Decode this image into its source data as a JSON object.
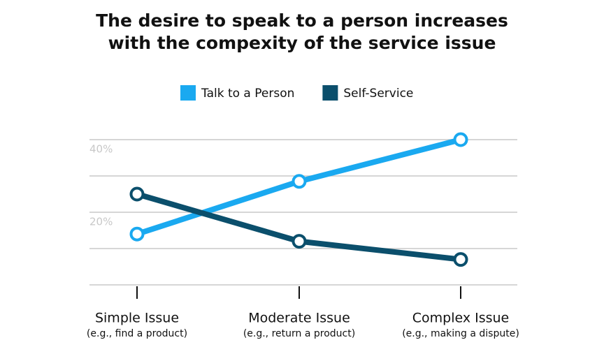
{
  "chart_data": {
    "type": "line",
    "title": [
      "The desire to speak to a person increases",
      "with the compexity of the service issue"
    ],
    "categories": [
      "Simple Issue",
      "Moderate Issue",
      "Complex Issue"
    ],
    "category_notes": [
      "(e.g., find a product)",
      "(e.g., return a product)",
      "(e.g., making a dispute)"
    ],
    "series": [
      {
        "name": "Talk to a Person",
        "color": "#1aa9f0",
        "values": [
          14,
          28.5,
          40
        ]
      },
      {
        "name": "Self-Service",
        "color": "#0b4f6c",
        "values": [
          25,
          12,
          7
        ]
      }
    ],
    "ylim": [
      0,
      40
    ],
    "yticks": [
      {
        "value": 20,
        "label": "20%"
      },
      {
        "value": 40,
        "label": "40%"
      }
    ],
    "grid_lines": [
      0,
      10,
      20,
      30,
      40
    ],
    "grid": true
  }
}
